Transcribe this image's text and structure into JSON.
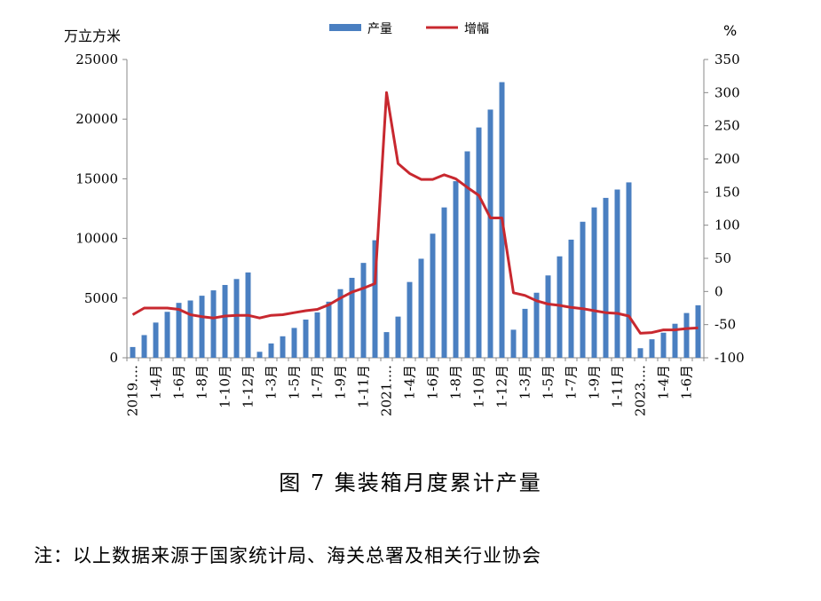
{
  "chart_data": {
    "type": "bar+line",
    "left_unit": "万立方米",
    "right_unit": "%",
    "legend": [
      {
        "name": "产量",
        "type": "bar",
        "color": "#4a7fc1"
      },
      {
        "name": "增幅",
        "type": "line",
        "color": "#c8282f"
      }
    ],
    "y_left": {
      "ylim": [
        0,
        25000
      ],
      "ticks": [
        "0",
        "5000",
        "10000",
        "15000",
        "20000",
        "25000"
      ]
    },
    "y_right": {
      "ylim": [
        -100,
        350
      ],
      "ticks": [
        "-100",
        "-50",
        "0",
        "50",
        "100",
        "150",
        "200",
        "250",
        "300",
        "350"
      ]
    },
    "x_tick_labels": [
      "2019.…",
      "1-4月",
      "1-6月",
      "1-8月",
      "1-10月",
      "1-12月",
      "1-3月",
      "1-5月",
      "1-7月",
      "1-9月",
      "1-11月",
      "2021.…",
      "1-4月",
      "1-6月",
      "1-8月",
      "1-10月",
      "1-12月",
      "1-3月",
      "1-5月",
      "1-7月",
      "1-9月",
      "1-11月",
      "2023.…",
      "1-4月",
      "1-6月"
    ],
    "x_tick_positions": [
      0,
      2,
      4,
      6,
      8,
      10,
      12,
      14,
      16,
      18,
      20,
      22,
      24,
      26,
      28,
      30,
      32,
      34,
      36,
      38,
      40,
      42,
      44,
      46,
      48
    ],
    "series": [
      {
        "name": "产量",
        "values": [
          900,
          1900,
          2950,
          3850,
          4600,
          4800,
          5200,
          5650,
          6100,
          6600,
          7150,
          500,
          1200,
          1800,
          2500,
          3200,
          3800,
          4700,
          5750,
          6700,
          7950,
          9850,
          2150,
          3450,
          6350,
          8300,
          10400,
          12600,
          14800,
          17300,
          19300,
          20800,
          23100,
          2350,
          4100,
          5450,
          6900,
          8500,
          9900,
          11400,
          12600,
          13400,
          14100,
          14700,
          800,
          1550,
          2100,
          2850,
          3750,
          4400
        ]
      },
      {
        "name": "增幅",
        "values": [
          -35,
          -25,
          -25,
          -25,
          -27,
          -35,
          -38,
          -40,
          -37,
          -36,
          -36,
          -40,
          -36,
          -35,
          -32,
          -29,
          -27,
          -20,
          -10,
          -1,
          5,
          12,
          300,
          193,
          178,
          169,
          169,
          176,
          170,
          157,
          145,
          111,
          111,
          -2,
          -6,
          -14,
          -19,
          -21,
          -24,
          -26,
          -29,
          -32,
          -33,
          -37,
          -63,
          -62,
          -58,
          -58,
          -56,
          -55
        ]
      }
    ]
  },
  "caption": "图 7  集装箱月度累计产量",
  "note": "注：以上数据来源于国家统计局、海关总署及相关行业协会"
}
